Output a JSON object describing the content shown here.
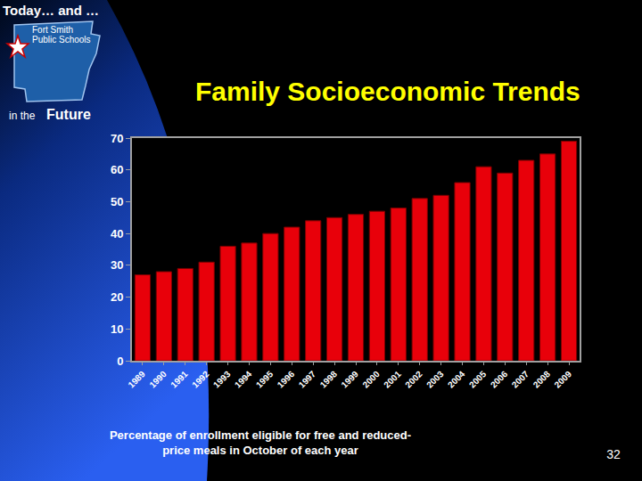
{
  "chart_data": {
    "type": "bar",
    "title": "Family Socioeconomic Trends",
    "xlabel": "Percentage of enrollment eligible for free and reduced-price meals in October of each year",
    "categories": [
      "1989",
      "1990",
      "1991",
      "1992",
      "1993",
      "1994",
      "1995",
      "1996",
      "1997",
      "1998",
      "1999",
      "2000",
      "2001",
      "2002",
      "2003",
      "2004",
      "2005",
      "2006",
      "2007",
      "2008",
      "2009"
    ],
    "values": [
      27,
      28,
      29,
      31,
      36,
      37,
      40,
      42,
      44,
      45,
      46,
      47,
      48,
      51,
      52,
      56,
      61,
      59,
      63,
      65,
      69
    ],
    "color": "#e8000a",
    "ylim": [
      0,
      70
    ],
    "yticks": [
      0,
      10,
      20,
      30,
      40,
      50,
      60,
      70
    ],
    "grid": false
  },
  "slide": {
    "header": "Today… and …",
    "logo": [
      "Fort Smith",
      "Public Schools"
    ],
    "tagline": [
      "in the",
      "Future"
    ],
    "page_number": "32"
  }
}
